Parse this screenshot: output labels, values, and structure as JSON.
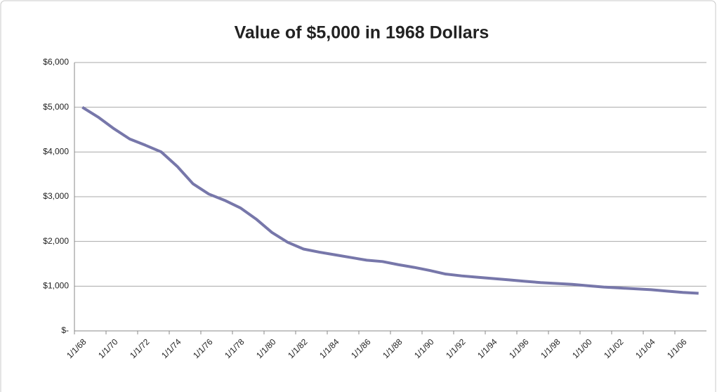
{
  "chart_data": {
    "type": "line",
    "title": "Value of $5,000 in 1968 Dollars",
    "categories": [
      "1/1/68",
      null,
      "1/1/70",
      null,
      "1/1/72",
      null,
      "1/1/74",
      null,
      "1/1/76",
      null,
      "1/1/78",
      null,
      "1/1/80",
      null,
      "1/1/82",
      null,
      "1/1/84",
      null,
      "1/1/86",
      null,
      "1/1/88",
      null,
      "1/1/90",
      null,
      "1/1/92",
      null,
      "1/1/94",
      null,
      "1/1/96",
      null,
      "1/1/98",
      null,
      "1/1/00",
      null,
      "1/1/02",
      null,
      "1/1/04",
      null,
      "1/1/06",
      null
    ],
    "values": [
      5000,
      4780,
      4520,
      4290,
      4150,
      4000,
      3680,
      3290,
      3060,
      2920,
      2750,
      2500,
      2200,
      1980,
      1830,
      1760,
      1700,
      1640,
      1580,
      1550,
      1480,
      1420,
      1350,
      1270,
      1230,
      1200,
      1170,
      1140,
      1110,
      1080,
      1060,
      1040,
      1010,
      980,
      960,
      940,
      920,
      890,
      860,
      840
    ],
    "color": "#7777aa",
    "ylim": [
      0,
      6000
    ],
    "yticks": [
      {
        "value": 0,
        "label": "$-"
      },
      {
        "value": 1000,
        "label": "$1,000"
      },
      {
        "value": 2000,
        "label": "$2,000"
      },
      {
        "value": 3000,
        "label": "$3,000"
      },
      {
        "value": 4000,
        "label": "$4,000"
      },
      {
        "value": 5000,
        "label": "$5,000"
      },
      {
        "value": 6000,
        "label": "$6,000"
      }
    ],
    "grid": true
  }
}
